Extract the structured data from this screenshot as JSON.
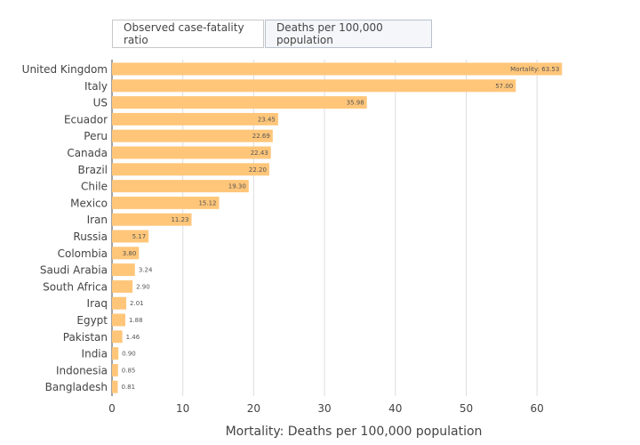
{
  "tabs": [
    {
      "label": "Observed case-fatality ratio",
      "active": false
    },
    {
      "label": "Deaths per 100,000 population",
      "active": true
    }
  ],
  "colors": {
    "bar": "#ffc67a",
    "grid": "#dddddd",
    "text": "#444444",
    "label": "#555555"
  },
  "chart_data": {
    "type": "bar",
    "orientation": "horizontal",
    "title": "",
    "xlabel": "Mortality: Deaths per 100,000 population",
    "ylabel": "",
    "xlim": [
      0,
      65
    ],
    "xticks": [
      0,
      10,
      20,
      30,
      40,
      50,
      60
    ],
    "grid": true,
    "first_label_prefix": "Mortality: ",
    "categories": [
      "United Kingdom",
      "Italy",
      "US",
      "Ecuador",
      "Peru",
      "Canada",
      "Brazil",
      "Chile",
      "Mexico",
      "Iran",
      "Russia",
      "Colombia",
      "Saudi Arabia",
      "South Africa",
      "Iraq",
      "Egypt",
      "Pakistan",
      "India",
      "Indonesia",
      "Bangladesh"
    ],
    "values": [
      63.53,
      57.0,
      35.98,
      23.45,
      22.69,
      22.43,
      22.2,
      19.3,
      15.12,
      11.23,
      5.17,
      3.8,
      3.24,
      2.9,
      2.01,
      1.88,
      1.46,
      0.9,
      0.85,
      0.81
    ]
  }
}
